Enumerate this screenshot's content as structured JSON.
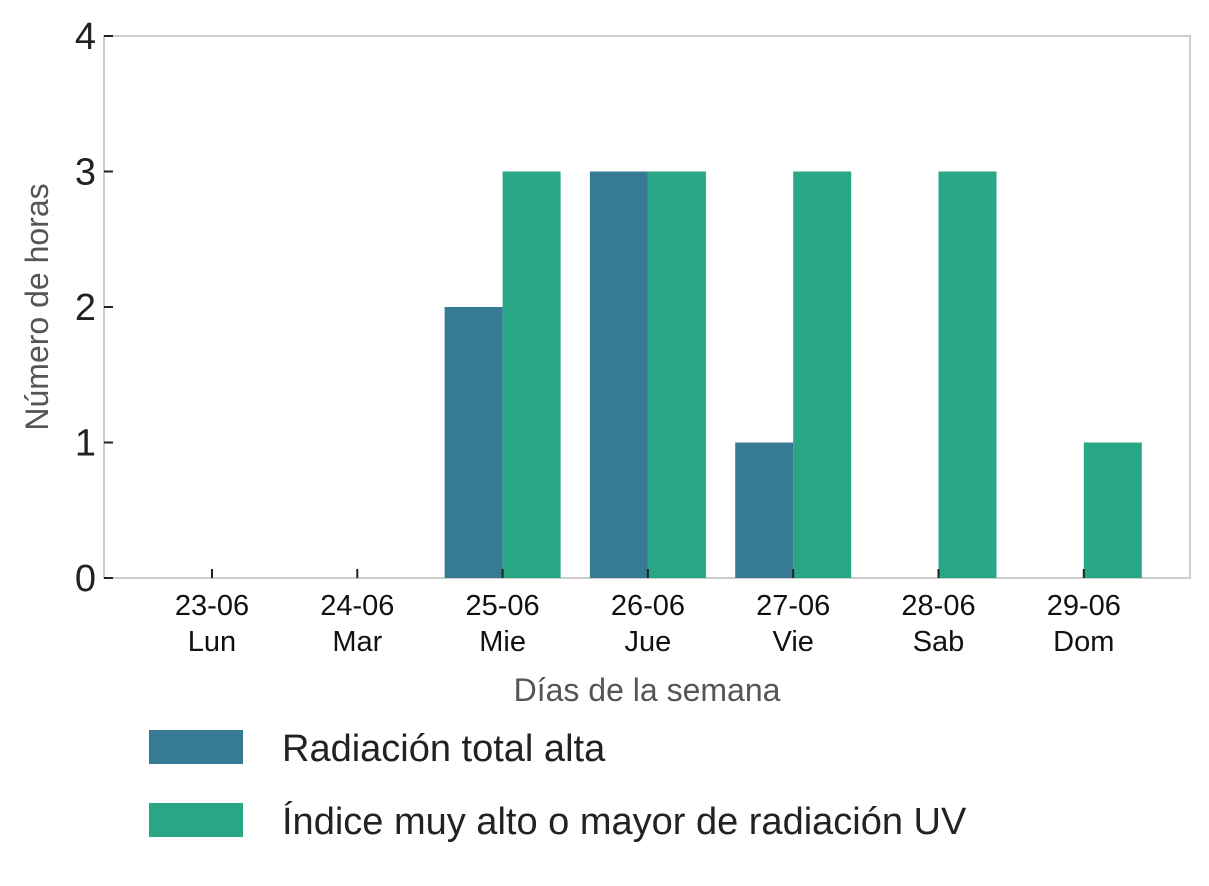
{
  "chart_data": {
    "type": "bar",
    "categories": [
      {
        "date": "23-06",
        "day": "Lun"
      },
      {
        "date": "24-06",
        "day": "Mar"
      },
      {
        "date": "25-06",
        "day": "Mie"
      },
      {
        "date": "26-06",
        "day": "Jue"
      },
      {
        "date": "27-06",
        "day": "Vie"
      },
      {
        "date": "28-06",
        "day": "Sab"
      },
      {
        "date": "29-06",
        "day": "Dom"
      }
    ],
    "series": [
      {
        "name": "Radiación total alta",
        "color": "#377a93",
        "values": [
          0,
          0,
          2,
          3,
          1,
          0,
          0
        ]
      },
      {
        "name": "Índice muy alto o mayor de radiación UV",
        "color": "#29a685",
        "values": [
          0,
          0,
          3,
          3,
          3,
          3,
          1
        ]
      }
    ],
    "xlabel": "Días de la semana",
    "ylabel": "Número de horas",
    "ylim": [
      0,
      4
    ],
    "yticks": [
      0,
      1,
      2,
      3,
      4
    ],
    "grid": false,
    "legend_position": "bottom-left"
  }
}
